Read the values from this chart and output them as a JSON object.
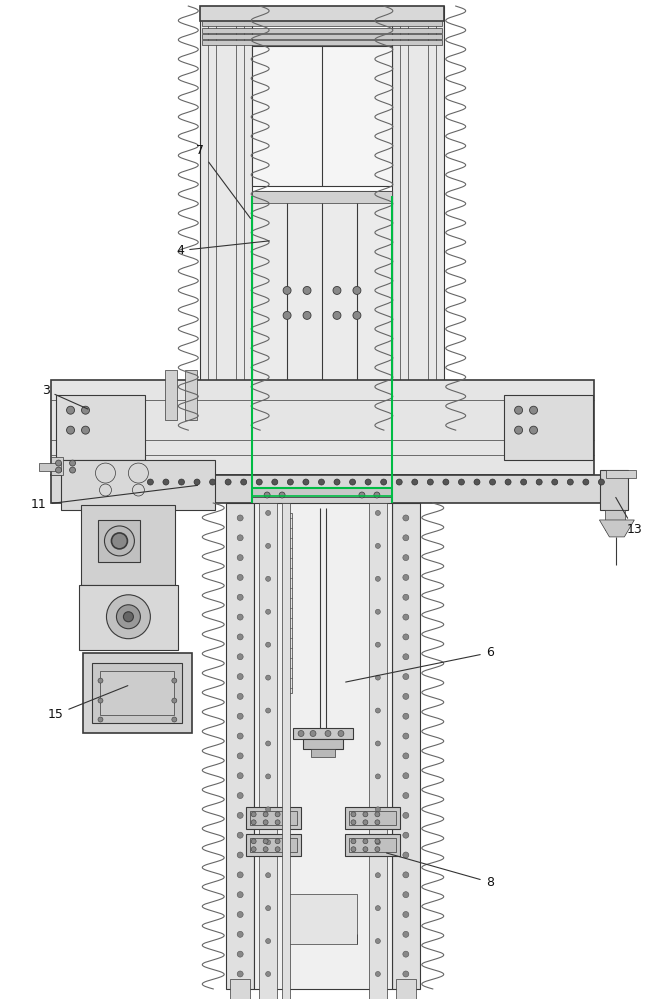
{
  "bg_color": "#ffffff",
  "line_color": "#3a3a3a",
  "green_color": "#00bb44",
  "lc": "#3a3a3a",
  "figsize": [
    6.49,
    10.0
  ],
  "dpi": 100,
  "annotations": {
    "3": [
      0.068,
      0.625,
      0.095,
      0.625
    ],
    "4": [
      0.34,
      0.71,
      0.305,
      0.69
    ],
    "6": [
      0.575,
      0.545,
      0.735,
      0.555
    ],
    "7": [
      0.34,
      0.86,
      0.255,
      0.84
    ],
    "8": [
      0.645,
      0.36,
      0.74,
      0.38
    ],
    "11": [
      0.195,
      0.49,
      0.06,
      0.505
    ],
    "13": [
      0.91,
      0.48,
      0.935,
      0.465
    ],
    "15": [
      0.15,
      0.44,
      0.09,
      0.43
    ]
  }
}
